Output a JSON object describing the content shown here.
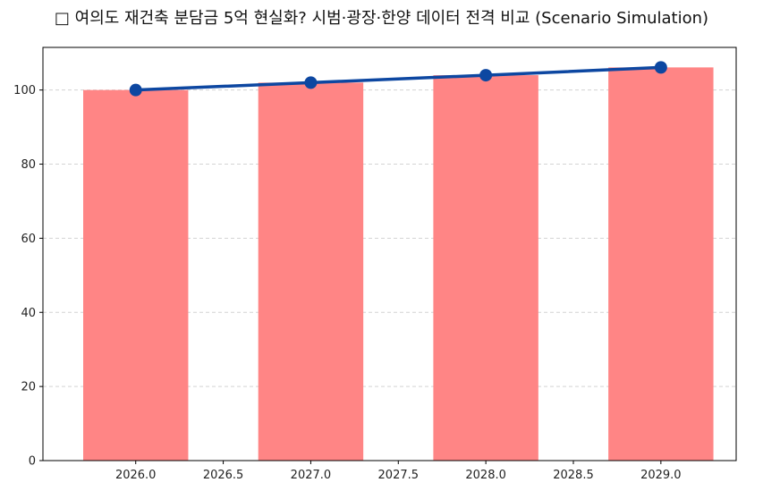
{
  "title": "□ 여의도 재건축 분담금 5억 현실화? 시범·광장·한양 데이터 전격 비교 (Scenario Simulation)",
  "colors": {
    "bar": "#ff8585",
    "line": "#0d47a1",
    "grid": "#d3d3d3",
    "axis": "#000000"
  },
  "chart_data": {
    "type": "bar",
    "title": "□ 여의도 재건축 분담금 5억 현실화? 시범·광장·한양 데이터 전격 비교 (Scenario Simulation)",
    "xlabel": "",
    "ylabel": "",
    "categories": [
      2026,
      2027,
      2028,
      2029
    ],
    "series": [
      {
        "name": "bar",
        "type": "bar",
        "color": "#ff8585",
        "values": [
          100,
          102,
          104,
          106.1
        ]
      },
      {
        "name": "line",
        "type": "line",
        "color": "#0d47a1",
        "marker": "circle",
        "values": [
          100,
          102,
          104,
          106.1
        ]
      }
    ],
    "xlim": [
      2025.47,
      2029.43
    ],
    "ylim": [
      0,
      111.5
    ],
    "xticks": [
      "2026.0",
      "2026.5",
      "2027.0",
      "2027.5",
      "2028.0",
      "2028.5",
      "2029.0"
    ],
    "yticks": [
      "0",
      "20",
      "40",
      "60",
      "80",
      "100"
    ],
    "grid": {
      "y": true,
      "x": false,
      "style": "dashed"
    },
    "legend": null
  }
}
